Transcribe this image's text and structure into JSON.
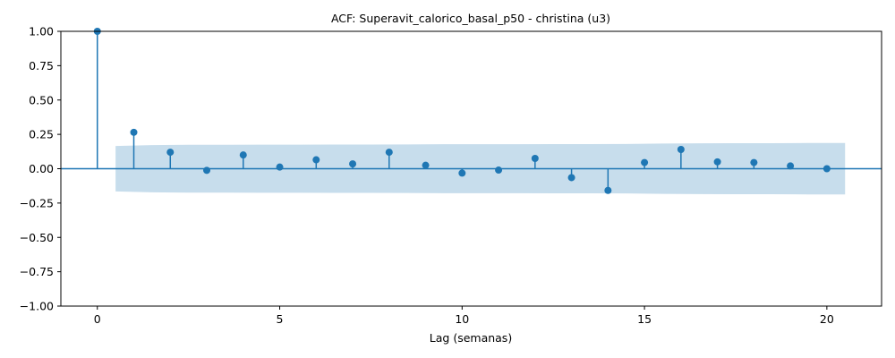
{
  "chart_data": {
    "type": "stem",
    "title": "ACF: Superavit_calorico_basal_p50 - christina (u3)",
    "xlabel": "Lag (semanas)",
    "ylabel": "",
    "xlim": [
      -1,
      21.5
    ],
    "ylim": [
      -1.0,
      1.0
    ],
    "xticks": [
      0,
      5,
      10,
      15,
      20
    ],
    "xtick_labels": [
      "0",
      "5",
      "10",
      "15",
      "20"
    ],
    "yticks": [
      -1.0,
      -0.75,
      -0.5,
      -0.25,
      0.0,
      0.25,
      0.5,
      0.75,
      1.0
    ],
    "ytick_labels": [
      "−1.00",
      "−0.75",
      "−0.50",
      "−0.25",
      "0.00",
      "0.25",
      "0.50",
      "0.75",
      "1.00"
    ],
    "grid": false,
    "lags": [
      0,
      1,
      2,
      3,
      4,
      5,
      6,
      7,
      8,
      9,
      10,
      11,
      12,
      13,
      14,
      15,
      16,
      17,
      18,
      19,
      20
    ],
    "acf": [
      1.0,
      0.265,
      0.12,
      -0.012,
      0.1,
      0.012,
      0.065,
      0.035,
      0.12,
      0.025,
      -0.032,
      -0.01,
      0.075,
      -0.065,
      -0.158,
      0.045,
      0.14,
      0.05,
      0.045,
      0.02,
      0.0
    ],
    "confidence_band": {
      "x": [
        0.5,
        1.5,
        2.5,
        3.5,
        4.5,
        5.5,
        6.5,
        7.5,
        8.5,
        9.5,
        10.5,
        11.5,
        12.5,
        13.5,
        14.5,
        15.5,
        16.5,
        17.5,
        18.5,
        19.5,
        20.5
      ],
      "upper": [
        0.165,
        0.172,
        0.174,
        0.174,
        0.175,
        0.175,
        0.176,
        0.176,
        0.177,
        0.178,
        0.178,
        0.178,
        0.179,
        0.179,
        0.18,
        0.183,
        0.185,
        0.186,
        0.186,
        0.187,
        0.187
      ],
      "lower": [
        -0.165,
        -0.172,
        -0.174,
        -0.174,
        -0.175,
        -0.175,
        -0.176,
        -0.176,
        -0.177,
        -0.178,
        -0.178,
        -0.178,
        -0.179,
        -0.179,
        -0.18,
        -0.183,
        -0.185,
        -0.186,
        -0.186,
        -0.187,
        -0.187
      ]
    },
    "colors": {
      "stem": "#1f77b4",
      "band": "#1f77b4"
    }
  }
}
